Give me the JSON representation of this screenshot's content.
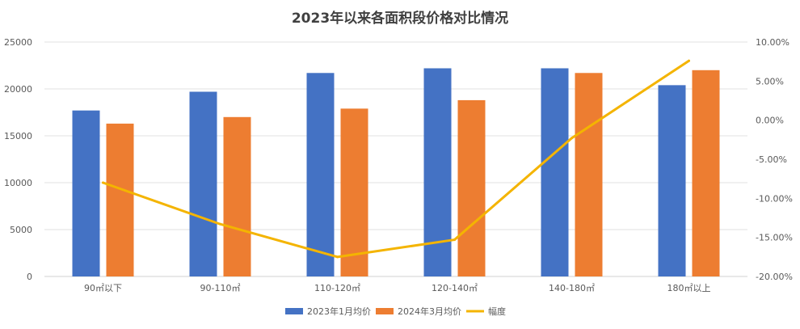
{
  "chart_data": {
    "type": "bar",
    "title": "2023年以来各面积段价格对比情况",
    "categories": [
      "90㎡以下",
      "90-110㎡",
      "110-120㎡",
      "120-140㎡",
      "140-180㎡",
      "180㎡以上"
    ],
    "series": [
      {
        "name": "2023年1月均价",
        "type": "bar",
        "axis": "left",
        "color": "#4472C4",
        "values": [
          17700,
          19700,
          21700,
          22200,
          22200,
          20400
        ]
      },
      {
        "name": "2024年3月均价",
        "type": "bar",
        "axis": "left",
        "color": "#ED7D31",
        "values": [
          16300,
          17000,
          17900,
          18800,
          21700,
          22000
        ]
      },
      {
        "name": "幅度",
        "type": "line",
        "axis": "right",
        "color": "#F4B400",
        "values": [
          -8.0,
          -13.3,
          -17.5,
          -15.3,
          -2.3,
          7.6
        ]
      }
    ],
    "ylim": [
      0,
      25000
    ],
    "y_ticks": [
      0,
      5000,
      10000,
      15000,
      20000,
      25000
    ],
    "y2lim": [
      -20,
      10
    ],
    "y2_ticks": [
      -20,
      -15,
      -10,
      -5,
      0,
      5,
      10
    ],
    "y2_tick_labels": [
      "-20.00%",
      "-15.00%",
      "-10.00%",
      "-5.00%",
      "0.00%",
      "5.00%",
      "10.00%"
    ],
    "grid": true,
    "legend_position": "bottom"
  }
}
